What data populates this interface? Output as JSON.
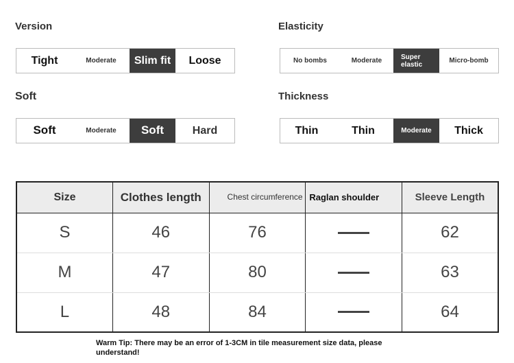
{
  "attributes": [
    {
      "title": "Version",
      "options": [
        "Tight",
        "Moderate",
        "Slim fit",
        "Loose"
      ],
      "selected": 2
    },
    {
      "title": "Elasticity",
      "options": [
        "No bombs",
        "Moderate",
        "Super elastic",
        "Micro-bomb"
      ],
      "selected": 2
    },
    {
      "title": "Soft",
      "options": [
        "Soft",
        "Moderate",
        "Soft",
        "Hard"
      ],
      "selected": 2
    },
    {
      "title": "Thickness",
      "options": [
        "Thin",
        "Thin",
        "Moderate",
        "Thick"
      ],
      "selected": 2
    }
  ],
  "size_table": {
    "headers": [
      "Size",
      "Clothes length",
      "Chest circumference",
      "Raglan shoulder",
      "Sleeve Length"
    ],
    "rows": [
      [
        "S",
        "46",
        "76",
        "—",
        "62"
      ],
      [
        "M",
        "47",
        "80",
        "—",
        "63"
      ],
      [
        "L",
        "48",
        "84",
        "—",
        "64"
      ]
    ]
  },
  "tip": "Warm Tip: There may be an error of 1-3CM in tile measurement size data, please understand!",
  "colors": {
    "selected": "#3d3d3d",
    "header_bg": "#ececec"
  }
}
